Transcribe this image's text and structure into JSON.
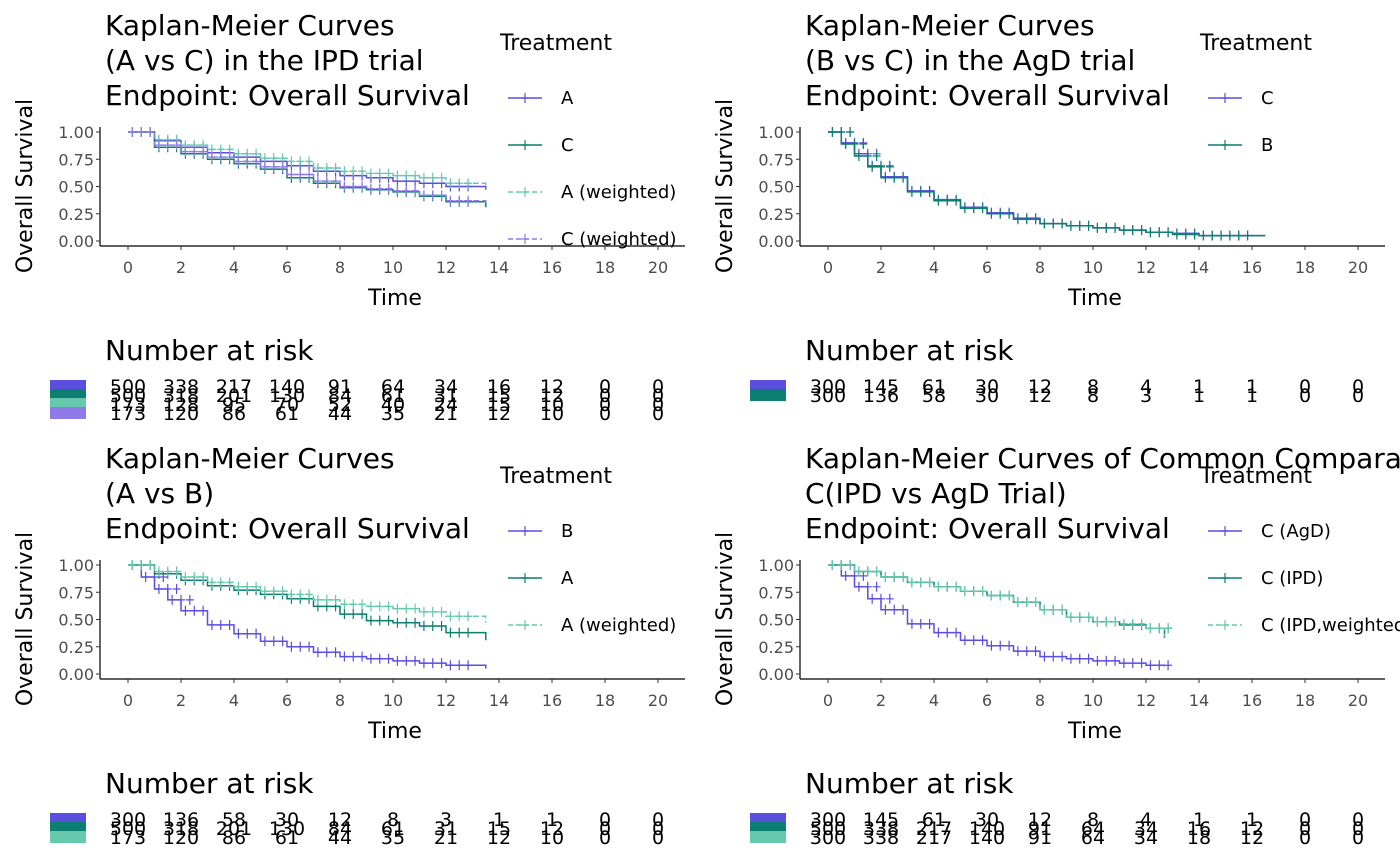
{
  "colors": {
    "purple": "#5b4fe0",
    "teal": "#0c7f72",
    "mint": "#66c9ad",
    "axis": "#000000",
    "tick": "#4d4d4d"
  },
  "chart_data": [
    {
      "type": "line",
      "title": [
        "Kaplan-Meier Curves",
        "(A vs C) in the IPD trial",
        "Endpoint: Overall Survival"
      ],
      "xlabel": "Time",
      "ylabel": "Overall Survival",
      "xlim": [
        -1,
        21
      ],
      "ylim": [
        0,
        1
      ],
      "x_ticks": [
        "0",
        "2",
        "4",
        "6",
        "8",
        "10",
        "12",
        "14",
        "16",
        "18",
        "20"
      ],
      "y_ticks": [
        "0.00",
        "0.25",
        "0.50",
        "0.75",
        "1.00"
      ],
      "legend_title": "Treatment",
      "legend_position": "right",
      "series": [
        {
          "name": "A",
          "color": "#5b4fe0",
          "dashed": false,
          "x": [
            0,
            1,
            2,
            3,
            4,
            5,
            6,
            7,
            8,
            9,
            10,
            11,
            12,
            13.5
          ],
          "y": [
            1,
            0.92,
            0.86,
            0.81,
            0.77,
            0.73,
            0.69,
            0.64,
            0.6,
            0.58,
            0.55,
            0.53,
            0.5,
            0.47
          ]
        },
        {
          "name": "C",
          "color": "#0c7f72",
          "dashed": false,
          "x": [
            0,
            1,
            2,
            3,
            4,
            5,
            6,
            7,
            8,
            9,
            10,
            11,
            12,
            13.5
          ],
          "y": [
            1,
            0.86,
            0.8,
            0.75,
            0.71,
            0.66,
            0.58,
            0.53,
            0.49,
            0.47,
            0.45,
            0.41,
            0.36,
            0.31
          ]
        },
        {
          "name": "A (weighted)",
          "color": "#66c9ad",
          "dashed": true,
          "x": [
            0,
            1,
            2,
            3,
            4,
            5,
            6,
            7,
            8,
            9,
            10,
            11,
            12,
            13.5
          ],
          "y": [
            1,
            0.93,
            0.88,
            0.84,
            0.8,
            0.76,
            0.73,
            0.67,
            0.64,
            0.62,
            0.6,
            0.58,
            0.53,
            0.48
          ]
        },
        {
          "name": "C (weighted)",
          "color": "#8f7be8",
          "dashed": true,
          "x": [
            0,
            1,
            2,
            3,
            4,
            5,
            6,
            7,
            8,
            9,
            10,
            11,
            12,
            13.5
          ],
          "y": [
            1,
            0.88,
            0.82,
            0.77,
            0.73,
            0.68,
            0.61,
            0.55,
            0.5,
            0.48,
            0.46,
            0.42,
            0.37,
            0.32
          ]
        }
      ],
      "risk_title": "Number at risk",
      "risk_table": [
        {
          "color": "#5b4fe0",
          "values": [
            "500",
            "338",
            "217",
            "140",
            "91",
            "64",
            "34",
            "16",
            "12",
            "0",
            "0"
          ]
        },
        {
          "color": "#0c7f72",
          "values": [
            "500",
            "318",
            "201",
            "130",
            "84",
            "61",
            "31",
            "15",
            "12",
            "0",
            "0"
          ]
        },
        {
          "color": "#66c9ad",
          "values": [
            "173",
            "128",
            "95",
            "70",
            "52",
            "40",
            "24",
            "15",
            "10",
            "0",
            "0"
          ]
        },
        {
          "color": "#8f7be8",
          "values": [
            "173",
            "120",
            "86",
            "61",
            "44",
            "35",
            "21",
            "12",
            "10",
            "0",
            "0"
          ]
        }
      ]
    },
    {
      "type": "line",
      "title": [
        "Kaplan-Meier Curves",
        "(B vs C) in the AgD trial",
        "Endpoint: Overall Survival"
      ],
      "xlabel": "Time",
      "ylabel": "Overall Survival",
      "xlim": [
        -1,
        21
      ],
      "ylim": [
        0,
        1
      ],
      "x_ticks": [
        "0",
        "2",
        "4",
        "6",
        "8",
        "10",
        "12",
        "14",
        "16",
        "18",
        "20"
      ],
      "y_ticks": [
        "0.00",
        "0.25",
        "0.50",
        "0.75",
        "1.00"
      ],
      "legend_title": "Treatment",
      "legend_position": "right",
      "series": [
        {
          "name": "C",
          "color": "#5b4fe0",
          "dashed": false,
          "x": [
            0,
            0.5,
            1,
            1.5,
            2,
            3,
            4,
            5,
            6,
            7,
            8,
            9,
            10,
            11,
            12,
            13,
            14,
            15,
            16.5
          ],
          "y": [
            1,
            0.9,
            0.8,
            0.69,
            0.59,
            0.46,
            0.38,
            0.31,
            0.26,
            0.21,
            0.16,
            0.14,
            0.12,
            0.1,
            0.08,
            0.07,
            0.05,
            0.05,
            0.05
          ]
        },
        {
          "name": "B",
          "color": "#0c7f72",
          "dashed": false,
          "x": [
            0,
            0.5,
            1,
            1.5,
            2,
            3,
            4,
            5,
            6,
            7,
            8,
            9,
            10,
            11,
            12,
            13,
            14,
            15,
            16.5
          ],
          "y": [
            1,
            0.89,
            0.78,
            0.68,
            0.58,
            0.45,
            0.37,
            0.3,
            0.25,
            0.2,
            0.16,
            0.14,
            0.12,
            0.1,
            0.08,
            0.06,
            0.05,
            0.05,
            0.05
          ]
        }
      ],
      "risk_title": "Number at risk",
      "risk_table": [
        {
          "color": "#5b4fe0",
          "values": [
            "300",
            "145",
            "61",
            "30",
            "12",
            "8",
            "4",
            "1",
            "1",
            "0",
            "0"
          ]
        },
        {
          "color": "#0c7f72",
          "values": [
            "300",
            "136",
            "58",
            "30",
            "12",
            "8",
            "3",
            "1",
            "1",
            "0",
            "0"
          ]
        }
      ]
    },
    {
      "type": "line",
      "title": [
        "Kaplan-Meier Curves",
        "(A vs B)",
        "Endpoint: Overall Survival"
      ],
      "xlabel": "Time",
      "ylabel": "Overall Survival",
      "xlim": [
        -1,
        21
      ],
      "ylim": [
        0,
        1
      ],
      "x_ticks": [
        "0",
        "2",
        "4",
        "6",
        "8",
        "10",
        "12",
        "14",
        "16",
        "18",
        "20"
      ],
      "y_ticks": [
        "0.00",
        "0.25",
        "0.50",
        "0.75",
        "1.00"
      ],
      "legend_title": "Treatment",
      "legend_position": "right",
      "series": [
        {
          "name": "B",
          "color": "#5b4fe0",
          "dashed": false,
          "x": [
            0,
            0.5,
            1,
            1.5,
            2,
            3,
            4,
            5,
            6,
            7,
            8,
            9,
            10,
            11,
            12,
            13.5
          ],
          "y": [
            1,
            0.89,
            0.78,
            0.68,
            0.58,
            0.45,
            0.37,
            0.3,
            0.25,
            0.2,
            0.16,
            0.14,
            0.12,
            0.1,
            0.08,
            0.05
          ]
        },
        {
          "name": "A",
          "color": "#0c7f72",
          "dashed": false,
          "x": [
            0,
            1,
            2,
            3,
            4,
            5,
            6,
            7,
            8,
            9,
            10,
            11,
            12,
            13.5
          ],
          "y": [
            1,
            0.92,
            0.86,
            0.81,
            0.77,
            0.73,
            0.69,
            0.62,
            0.55,
            0.49,
            0.47,
            0.44,
            0.38,
            0.31
          ]
        },
        {
          "name": "A (weighted)",
          "color": "#66c9ad",
          "dashed": true,
          "x": [
            0,
            1,
            2,
            3,
            4,
            5,
            6,
            7,
            8,
            9,
            10,
            11,
            12,
            13.5
          ],
          "y": [
            1,
            0.94,
            0.89,
            0.84,
            0.8,
            0.76,
            0.73,
            0.68,
            0.64,
            0.62,
            0.6,
            0.57,
            0.53,
            0.47
          ]
        }
      ],
      "risk_title": "Number at risk",
      "risk_table": [
        {
          "color": "#5b4fe0",
          "values": [
            "300",
            "136",
            "58",
            "30",
            "12",
            "8",
            "3",
            "1",
            "1",
            "0",
            "0"
          ]
        },
        {
          "color": "#0c7f72",
          "values": [
            "500",
            "318",
            "201",
            "130",
            "84",
            "61",
            "31",
            "15",
            "12",
            "0",
            "0"
          ]
        },
        {
          "color": "#66c9ad",
          "values": [
            "173",
            "120",
            "86",
            "61",
            "44",
            "35",
            "21",
            "12",
            "10",
            "0",
            "0"
          ]
        }
      ]
    },
    {
      "type": "line",
      "title": [
        "Kaplan-Meier Curves of Common Comparator",
        "C(IPD vs AgD Trial)",
        "Endpoint: Overall Survival"
      ],
      "xlabel": "Time",
      "ylabel": "Overall Survival",
      "xlim": [
        -1,
        21
      ],
      "ylim": [
        0,
        1
      ],
      "x_ticks": [
        "0",
        "2",
        "4",
        "6",
        "8",
        "10",
        "12",
        "14",
        "16",
        "18",
        "20"
      ],
      "y_ticks": [
        "0.00",
        "0.25",
        "0.50",
        "0.75",
        "1.00"
      ],
      "legend_title": "Treatment",
      "legend_position": "right",
      "series": [
        {
          "name": "C (AgD)",
          "color": "#5b4fe0",
          "dashed": false,
          "x": [
            0,
            0.5,
            1,
            1.5,
            2,
            3,
            4,
            5,
            6,
            7,
            8,
            9,
            10,
            11,
            12,
            12.7
          ],
          "y": [
            1,
            0.9,
            0.8,
            0.69,
            0.59,
            0.46,
            0.38,
            0.31,
            0.26,
            0.21,
            0.16,
            0.14,
            0.12,
            0.1,
            0.08,
            0.07
          ]
        },
        {
          "name": "C (IPD)",
          "color": "#0c7f72",
          "dashed": false,
          "x": [
            0,
            1,
            2,
            3,
            4,
            5,
            6,
            7,
            8,
            9,
            10,
            11,
            12,
            12.7
          ],
          "y": [
            1,
            0.94,
            0.89,
            0.84,
            0.8,
            0.76,
            0.72,
            0.66,
            0.59,
            0.52,
            0.48,
            0.45,
            0.42,
            0.33
          ]
        },
        {
          "name": "C (IPD,weighted)",
          "color": "#66c9ad",
          "dashed": true,
          "x": [
            0,
            1,
            2,
            3,
            4,
            5,
            6,
            7,
            8,
            9,
            10,
            11,
            12,
            12.7
          ],
          "y": [
            1,
            0.94,
            0.89,
            0.84,
            0.8,
            0.76,
            0.72,
            0.66,
            0.59,
            0.52,
            0.48,
            0.46,
            0.42,
            0.34
          ]
        }
      ],
      "risk_title": "Number at risk",
      "risk_table": [
        {
          "color": "#5b4fe0",
          "values": [
            "300",
            "145",
            "61",
            "30",
            "12",
            "8",
            "4",
            "1",
            "1",
            "0",
            "0"
          ]
        },
        {
          "color": "#0c7f72",
          "values": [
            "500",
            "338",
            "217",
            "140",
            "91",
            "64",
            "34",
            "16",
            "12",
            "0",
            "0"
          ]
        },
        {
          "color": "#66c9ad",
          "values": [
            "300",
            "338",
            "217",
            "140",
            "91",
            "64",
            "34",
            "18",
            "12",
            "0",
            "0"
          ]
        }
      ]
    }
  ]
}
